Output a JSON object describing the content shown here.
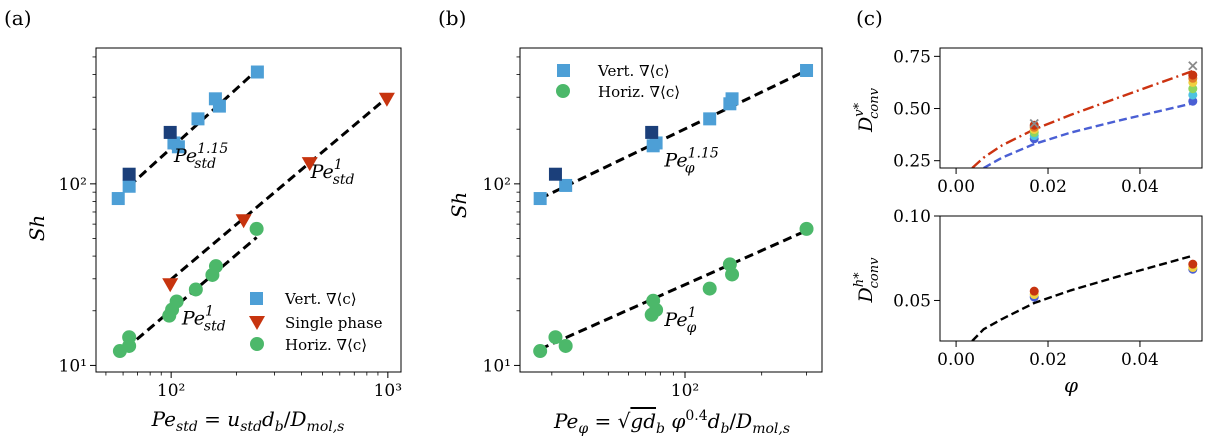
{
  "colors": {
    "vert": "#4d9fd6",
    "vert_dark": "#1b3f7a",
    "horiz": "#4cb86a",
    "single": "#c7340f",
    "fit": "#000000",
    "c_top_red": "#cc3311",
    "c_top_blue": "#4a5fd4"
  },
  "chart_data": [
    {
      "panel_label": "(a)",
      "type": "scatter",
      "xscale": "log",
      "yscale": "log",
      "xlim": [
        45,
        1150
      ],
      "ylim": [
        9.2,
        560
      ],
      "xticks": [
        {
          "v": 100,
          "label": "10²"
        },
        {
          "v": 1000,
          "label": "10³"
        }
      ],
      "yticks": [
        {
          "v": 10,
          "label": "10¹"
        },
        {
          "v": 100,
          "label": "10²"
        }
      ],
      "xlabel": "Pe_std = u_std d_b/D_mol,s",
      "ylabel": "Sh",
      "legend": {
        "placement": "bottom-right",
        "entries": [
          {
            "label": "Vert. ∇⟨c⟩",
            "marker": "square",
            "color": "#4d9fd6"
          },
          {
            "label": "Single phase",
            "marker": "triangle",
            "color": "#c7340f"
          },
          {
            "label": "Horiz. ∇⟨c⟩",
            "marker": "circle",
            "color": "#4cb86a"
          }
        ]
      },
      "series": [
        {
          "name": "Vert. ∇⟨c⟩",
          "marker": "square",
          "color": "#4d9fd6",
          "points": [
            [
              57,
              83
            ],
            [
              64,
              97
            ],
            [
              103,
              168
            ],
            [
              108,
              160
            ],
            [
              133,
              228
            ],
            [
              160,
              294
            ],
            [
              167,
              268
            ],
            [
              250,
              413
            ]
          ]
        },
        {
          "marker": "square",
          "color": "#1b3f7a",
          "points": [
            [
              64,
              113
            ],
            [
              99,
              192
            ]
          ]
        },
        {
          "name": "Single phase",
          "marker": "triangle",
          "color": "#c7340f",
          "points": [
            [
              99,
              28
            ],
            [
              216,
              63
            ],
            [
              436,
              130
            ],
            [
              990,
              294
            ]
          ]
        },
        {
          "name": "Horiz. ∇⟨c⟩",
          "marker": "circle",
          "color": "#4cb86a",
          "points": [
            [
              58,
              12
            ],
            [
              64,
              12.8
            ],
            [
              64,
              14.3
            ],
            [
              98,
              18.8
            ],
            [
              101,
              20.3
            ],
            [
              106,
              22.5
            ],
            [
              130,
              26.2
            ],
            [
              155,
              31.5
            ],
            [
              161,
              35.2
            ],
            [
              248,
              56.5
            ]
          ]
        }
      ],
      "fits": [
        {
          "x": [
            64,
            250
          ],
          "y": [
            97,
            425
          ]
        },
        {
          "x": [
            99,
            990
          ],
          "y": [
            29.5,
            298
          ]
        },
        {
          "x": [
            62,
            248
          ],
          "y": [
            12.4,
            50.7
          ]
        }
      ],
      "annotations": [
        {
          "base": "Pe",
          "sub": "std",
          "sup": "1.15",
          "x": 103,
          "y": 132
        },
        {
          "base": "Pe",
          "sub": "std",
          "sup": "1",
          "x": 440,
          "y": 108
        },
        {
          "base": "Pe",
          "sub": "std",
          "sup": "1",
          "x": 112,
          "y": 16.8
        }
      ]
    },
    {
      "panel_label": "(b)",
      "type": "scatter",
      "xscale": "log",
      "yscale": "log",
      "xlim": [
        22.5,
        345
      ],
      "ylim": [
        9.2,
        560
      ],
      "xticks": [
        {
          "v": 100,
          "label": "10²"
        }
      ],
      "yticks": [
        {
          "v": 10,
          "label": "10¹"
        },
        {
          "v": 100,
          "label": "10²"
        }
      ],
      "xlabel": "Pe_φ = √(g d_b) φ^0.4 d_b/D_mol,s",
      "ylabel": "Sh",
      "legend": {
        "placement": "top-left",
        "entries": [
          {
            "label": "Vert. ∇⟨c⟩",
            "marker": "square",
            "color": "#4d9fd6"
          },
          {
            "label": "Horiz. ∇⟨c⟩",
            "marker": "circle",
            "color": "#4cb86a"
          }
        ]
      },
      "series": [
        {
          "name": "Vert. ∇⟨c⟩",
          "marker": "square",
          "color": "#4d9fd6",
          "points": [
            [
              27,
              83
            ],
            [
              34,
              98
            ],
            [
              75,
              162
            ],
            [
              77,
              168
            ],
            [
              125,
              228
            ],
            [
              150,
              276
            ],
            [
              153,
              294
            ],
            [
              300,
              421
            ]
          ]
        },
        {
          "marker": "square",
          "color": "#1b3f7a",
          "points": [
            [
              31,
              113
            ],
            [
              74,
              192
            ]
          ]
        },
        {
          "name": "Horiz. ∇⟨c⟩",
          "marker": "circle",
          "color": "#4cb86a",
          "points": [
            [
              27,
              12
            ],
            [
              31,
              14.3
            ],
            [
              34,
              12.8
            ],
            [
              74,
              19
            ],
            [
              75,
              22.7
            ],
            [
              77,
              20.2
            ],
            [
              125,
              26.5
            ],
            [
              150,
              36
            ],
            [
              153,
              31.7
            ],
            [
              300,
              56.5
            ]
          ]
        }
      ],
      "fits": [
        {
          "x": [
            27,
            300
          ],
          "y": [
            83,
            421
          ]
        },
        {
          "x": [
            27,
            300
          ],
          "y": [
            12.3,
            55.3
          ]
        }
      ],
      "annotations": [
        {
          "base": "Pe",
          "sub": "φ",
          "sup": "1.15",
          "x": 83,
          "y": 125
        },
        {
          "base": "Pe",
          "sub": "φ",
          "sup": "1",
          "x": 83,
          "y": 16.5
        }
      ]
    },
    {
      "panel_label": "(c)",
      "type": "scatter",
      "xscale": "linear",
      "yscale": "linear",
      "xlim": [
        -0.0035,
        0.0535
      ],
      "ylim": [
        0.215,
        0.79
      ],
      "xticks": [
        {
          "v": 0,
          "label": "0.00"
        },
        {
          "v": 0.02,
          "label": "0.02"
        },
        {
          "v": 0.04,
          "label": "0.04"
        }
      ],
      "yticks": [
        {
          "v": 0.25,
          "label": "0.25"
        },
        {
          "v": 0.5,
          "label": "0.50"
        },
        {
          "v": 0.75,
          "label": "0.75"
        }
      ],
      "ylabel": "D^{v*}_conv",
      "series": [
        {
          "marker": "circle",
          "color": "#4a5fd4",
          "points": [
            [
              0.017,
              0.355
            ],
            [
              0.0515,
              0.535
            ]
          ]
        },
        {
          "marker": "circle",
          "color": "#4ec3e0",
          "points": [
            [
              0.017,
              0.37
            ],
            [
              0.0515,
              0.565
            ]
          ]
        },
        {
          "marker": "circle",
          "color": "#8fd65e",
          "points": [
            [
              0.017,
              0.385
            ],
            [
              0.0515,
              0.595
            ]
          ]
        },
        {
          "marker": "circle",
          "color": "#f0d040",
          "points": [
            [
              0.017,
              0.4
            ],
            [
              0.0515,
              0.625
            ]
          ]
        },
        {
          "marker": "circle",
          "color": "#e27a2a",
          "points": [
            [
              0.017,
              0.41
            ],
            [
              0.0515,
              0.645
            ]
          ]
        },
        {
          "marker": "circle",
          "color": "#c7340f",
          "points": [
            [
              0.017,
              0.42
            ],
            [
              0.0515,
              0.66
            ]
          ]
        },
        {
          "marker": "cross",
          "color": "#8a8a8a",
          "points": [
            [
              0.017,
              0.428
            ],
            [
              0.0515,
              0.705
            ]
          ]
        }
      ],
      "curves": [
        {
          "style": "dashdot",
          "color": "#cc3311",
          "points": [
            [
              0.0035,
              0.215
            ],
            [
              0.006,
              0.265
            ],
            [
              0.01,
              0.324
            ],
            [
              0.017,
              0.4
            ],
            [
              0.025,
              0.47
            ],
            [
              0.035,
              0.55
            ],
            [
              0.0515,
              0.68
            ]
          ]
        },
        {
          "style": "dashed",
          "color": "#4a5fd4",
          "points": [
            [
              0.006,
              0.215
            ],
            [
              0.01,
              0.265
            ],
            [
              0.017,
              0.33
            ],
            [
              0.025,
              0.385
            ],
            [
              0.035,
              0.44
            ],
            [
              0.0515,
              0.525
            ]
          ]
        }
      ]
    },
    {
      "type": "scatter",
      "xscale": "linear",
      "yscale": "linear",
      "xlim": [
        -0.0035,
        0.0535
      ],
      "ylim": [
        0.026,
        0.1
      ],
      "xticks": [
        {
          "v": 0,
          "label": "0.00"
        },
        {
          "v": 0.02,
          "label": "0.02"
        },
        {
          "v": 0.04,
          "label": "0.04"
        }
      ],
      "yticks": [
        {
          "v": 0.05,
          "label": "0.05"
        },
        {
          "v": 0.1,
          "label": "0.10"
        }
      ],
      "xlabel": "φ",
      "ylabel": "D^{h*}_conv",
      "series": [
        {
          "marker": "circle",
          "color": "#4a5fd4",
          "points": [
            [
              0.017,
              0.052
            ],
            [
              0.0515,
              0.0685
            ]
          ]
        },
        {
          "marker": "circle",
          "color": "#f0d040",
          "points": [
            [
              0.017,
              0.0535
            ],
            [
              0.0515,
              0.0695
            ]
          ]
        },
        {
          "marker": "circle",
          "color": "#c7340f",
          "points": [
            [
              0.017,
              0.0555
            ],
            [
              0.0515,
              0.0715
            ]
          ]
        }
      ],
      "curves": [
        {
          "style": "dashed",
          "color": "#000000",
          "points": [
            [
              0.0035,
              0.026
            ],
            [
              0.006,
              0.033
            ],
            [
              0.01,
              0.039
            ],
            [
              0.017,
              0.0485
            ],
            [
              0.025,
              0.056
            ],
            [
              0.035,
              0.064
            ],
            [
              0.0515,
              0.0765
            ]
          ]
        }
      ]
    }
  ]
}
